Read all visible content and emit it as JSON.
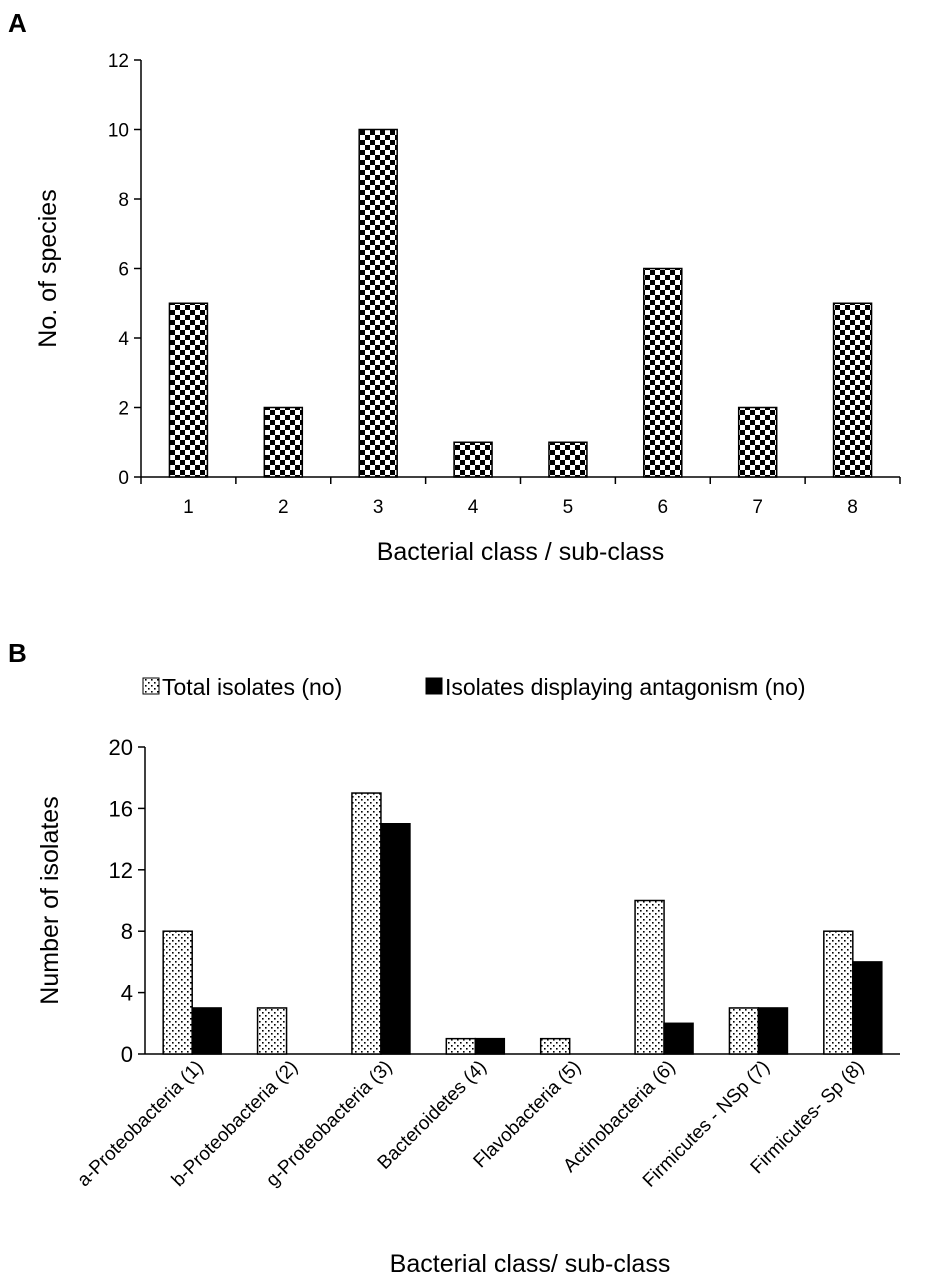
{
  "chart_data": [
    {
      "panel": "A",
      "type": "bar",
      "categories": [
        "1",
        "2",
        "3",
        "4",
        "5",
        "6",
        "7",
        "8"
      ],
      "values": [
        5,
        2,
        10,
        1,
        1,
        6,
        2,
        5
      ],
      "title": "",
      "xlabel": "Bacterial class / sub-class",
      "ylabel": "No. of species",
      "ylim": [
        0,
        12
      ],
      "yticks": [
        0,
        2,
        4,
        6,
        8,
        10,
        12
      ],
      "pattern": "checkerboard",
      "grid": false
    },
    {
      "panel": "B",
      "type": "bar",
      "categories": [
        "a-Proteobacteria (1)",
        "b-Proteobacteria (2)",
        "g-Proteobacteria (3)",
        "Bacteroidetes (4)",
        "Flavobacteria (5)",
        "Actinobacteria (6)",
        "Firmicutes - NSp (7)",
        "Firmicutes- Sp (8)"
      ],
      "series": [
        {
          "name": "Total isolates (no)",
          "values": [
            8,
            3,
            17,
            1,
            1,
            10,
            3,
            8
          ],
          "pattern": "dotted"
        },
        {
          "name": "Isolates displaying antagonism (no)",
          "values": [
            3,
            0,
            15,
            1,
            0,
            2,
            3,
            6
          ],
          "color": "#000000"
        }
      ],
      "title": "",
      "xlabel": "Bacterial class/ sub-class",
      "ylabel": "Number of isolates",
      "ylim": [
        0,
        20
      ],
      "yticks": [
        0,
        4,
        8,
        12,
        16,
        20
      ],
      "legend": "top",
      "grid": false
    }
  ]
}
